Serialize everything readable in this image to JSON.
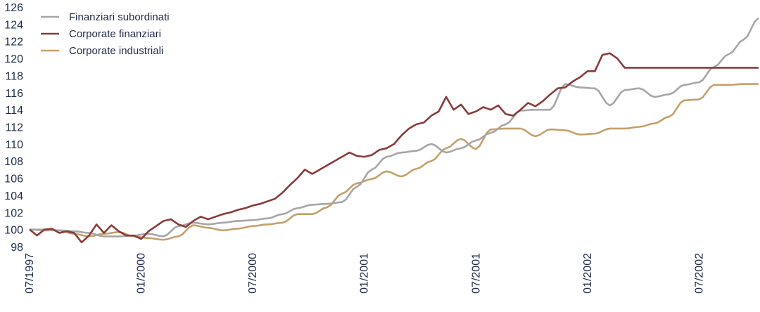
{
  "chart_data": {
    "type": "line",
    "title": "",
    "xlabel": "",
    "ylabel": "",
    "ylim": [
      98,
      126
    ],
    "yticks": [
      98,
      100,
      102,
      104,
      106,
      108,
      110,
      112,
      114,
      116,
      118,
      120,
      122,
      124,
      126
    ],
    "x_tick_labels": [
      "07/1997",
      "01/2000",
      "07/2000",
      "01/2001",
      "07/2001",
      "01/2002",
      "07/2002"
    ],
    "x_tick_index": [
      0,
      30,
      60,
      90,
      120,
      150,
      180
    ],
    "x_count": 197,
    "grid": false,
    "legend_position": "top-left",
    "series": [
      {
        "name": "Finanziari subordinati",
        "color": "#a6a6a6",
        "knots": [
          [
            0,
            100
          ],
          [
            4,
            100
          ],
          [
            8,
            99.9
          ],
          [
            12,
            99.8
          ],
          [
            16,
            99.6
          ],
          [
            20,
            99.2
          ],
          [
            24,
            99.2
          ],
          [
            28,
            99.3
          ],
          [
            32,
            99.5
          ],
          [
            36,
            99.2
          ],
          [
            40,
            100.4
          ],
          [
            44,
            100.8
          ],
          [
            48,
            100.6
          ],
          [
            52,
            100.8
          ],
          [
            56,
            101.0
          ],
          [
            60,
            101.1
          ],
          [
            64,
            101.3
          ],
          [
            68,
            101.8
          ],
          [
            72,
            102.5
          ],
          [
            76,
            102.9
          ],
          [
            80,
            103.0
          ],
          [
            84,
            103.2
          ],
          [
            88,
            105.0
          ],
          [
            92,
            107.0
          ],
          [
            96,
            108.5
          ],
          [
            100,
            109.0
          ],
          [
            104,
            109.2
          ],
          [
            108,
            110.0
          ],
          [
            112,
            109.0
          ],
          [
            116,
            109.5
          ],
          [
            120,
            110.4
          ],
          [
            124,
            111.3
          ],
          [
            128,
            112.3
          ],
          [
            132,
            113.9
          ],
          [
            136,
            114.0
          ],
          [
            140,
            114.0
          ],
          [
            144,
            117.0
          ],
          [
            148,
            116.6
          ],
          [
            152,
            116.5
          ],
          [
            156,
            114.5
          ],
          [
            160,
            116.3
          ],
          [
            164,
            116.5
          ],
          [
            168,
            115.5
          ],
          [
            172,
            115.8
          ],
          [
            176,
            116.9
          ],
          [
            180,
            117.2
          ],
          [
            184,
            119.0
          ],
          [
            188,
            120.5
          ],
          [
            192,
            122.2
          ],
          [
            196,
            124.7
          ]
        ]
      },
      {
        "name": "Corporate finanziari",
        "color": "#8b3a3a",
        "knots": [
          [
            0,
            100
          ],
          [
            2,
            99.3
          ],
          [
            4,
            100.0
          ],
          [
            6,
            100.1
          ],
          [
            8,
            99.6
          ],
          [
            10,
            99.8
          ],
          [
            12,
            99.6
          ],
          [
            14,
            98.5
          ],
          [
            16,
            99.3
          ],
          [
            18,
            100.6
          ],
          [
            20,
            99.6
          ],
          [
            22,
            100.5
          ],
          [
            24,
            99.8
          ],
          [
            26,
            99.3
          ],
          [
            28,
            99.3
          ],
          [
            30,
            98.9
          ],
          [
            32,
            99.8
          ],
          [
            34,
            100.4
          ],
          [
            36,
            101.0
          ],
          [
            38,
            101.2
          ],
          [
            40,
            100.6
          ],
          [
            42,
            100.3
          ],
          [
            44,
            101.0
          ],
          [
            46,
            101.5
          ],
          [
            48,
            101.2
          ],
          [
            50,
            101.5
          ],
          [
            52,
            101.8
          ],
          [
            54,
            102.0
          ],
          [
            56,
            102.3
          ],
          [
            58,
            102.5
          ],
          [
            60,
            102.8
          ],
          [
            62,
            103.0
          ],
          [
            64,
            103.3
          ],
          [
            66,
            103.6
          ],
          [
            68,
            104.3
          ],
          [
            70,
            105.2
          ],
          [
            72,
            106.0
          ],
          [
            74,
            107.0
          ],
          [
            76,
            106.5
          ],
          [
            78,
            107.0
          ],
          [
            80,
            107.5
          ],
          [
            82,
            108.0
          ],
          [
            84,
            108.5
          ],
          [
            86,
            109.0
          ],
          [
            88,
            108.6
          ],
          [
            90,
            108.5
          ],
          [
            92,
            108.7
          ],
          [
            94,
            109.3
          ],
          [
            96,
            109.5
          ],
          [
            98,
            110.0
          ],
          [
            100,
            111.0
          ],
          [
            102,
            111.8
          ],
          [
            104,
            112.3
          ],
          [
            106,
            112.5
          ],
          [
            108,
            113.3
          ],
          [
            110,
            113.8
          ],
          [
            112,
            115.5
          ],
          [
            114,
            114.0
          ],
          [
            116,
            114.6
          ],
          [
            118,
            113.5
          ],
          [
            120,
            113.8
          ],
          [
            122,
            114.3
          ],
          [
            124,
            114.0
          ],
          [
            126,
            114.5
          ],
          [
            128,
            113.5
          ],
          [
            130,
            113.3
          ],
          [
            132,
            114.0
          ],
          [
            134,
            114.8
          ],
          [
            136,
            114.4
          ],
          [
            138,
            115.0
          ],
          [
            140,
            115.8
          ],
          [
            142,
            116.5
          ],
          [
            144,
            116.6
          ],
          [
            146,
            117.3
          ],
          [
            148,
            117.8
          ],
          [
            150,
            118.5
          ],
          [
            152,
            118.5
          ],
          [
            154,
            120.4
          ],
          [
            156,
            120.6
          ],
          [
            158,
            120.0
          ],
          [
            160,
            118.9
          ]
        ]
      },
      {
        "name": "Corporate industriali",
        "color": "#c4a06a",
        "knots": [
          [
            0,
            100
          ],
          [
            4,
            99.9
          ],
          [
            8,
            99.9
          ],
          [
            12,
            99.5
          ],
          [
            16,
            99.2
          ],
          [
            20,
            99.5
          ],
          [
            24,
            99.7
          ],
          [
            28,
            99.2
          ],
          [
            32,
            99.0
          ],
          [
            36,
            98.8
          ],
          [
            40,
            99.2
          ],
          [
            44,
            100.5
          ],
          [
            48,
            100.2
          ],
          [
            52,
            99.9
          ],
          [
            56,
            100.1
          ],
          [
            60,
            100.4
          ],
          [
            64,
            100.6
          ],
          [
            68,
            100.8
          ],
          [
            72,
            101.8
          ],
          [
            76,
            101.8
          ],
          [
            80,
            102.6
          ],
          [
            84,
            104.2
          ],
          [
            88,
            105.4
          ],
          [
            92,
            105.9
          ],
          [
            96,
            106.8
          ],
          [
            100,
            106.2
          ],
          [
            104,
            107.1
          ],
          [
            108,
            108.0
          ],
          [
            112,
            109.5
          ],
          [
            116,
            110.6
          ],
          [
            120,
            109.4
          ],
          [
            124,
            111.7
          ],
          [
            128,
            111.8
          ],
          [
            132,
            111.8
          ],
          [
            136,
            110.9
          ],
          [
            140,
            111.7
          ],
          [
            144,
            111.6
          ],
          [
            148,
            111.1
          ],
          [
            152,
            111.2
          ],
          [
            156,
            111.8
          ],
          [
            160,
            111.8
          ],
          [
            164,
            112.0
          ],
          [
            168,
            112.4
          ],
          [
            172,
            113.2
          ],
          [
            176,
            115.1
          ],
          [
            180,
            115.2
          ],
          [
            184,
            116.9
          ],
          [
            188,
            116.9
          ],
          [
            192,
            117.0
          ],
          [
            196,
            117.0
          ]
        ]
      }
    ]
  }
}
